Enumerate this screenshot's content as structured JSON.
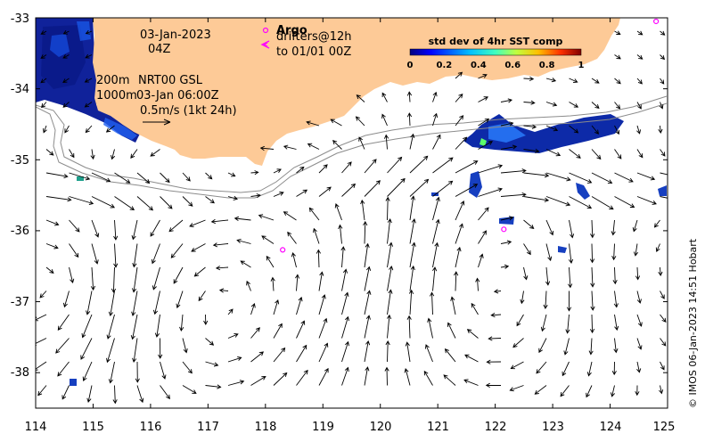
{
  "map": {
    "lon_ticks": [
      "114",
      "115",
      "116",
      "117",
      "118",
      "119",
      "120",
      "121",
      "122",
      "123",
      "124",
      "125"
    ],
    "lat_ticks": [
      "-33",
      "-34",
      "-35",
      "-36",
      "-37",
      "-38"
    ],
    "lon_range": [
      114,
      125
    ],
    "lat_range": [
      -38.5,
      -33
    ]
  },
  "annotations": {
    "date": "03-Jan-2023",
    "time": "04Z",
    "contour_200": "200m",
    "contour_1000": "1000m",
    "product": "NRT00 GSL",
    "valid_time": "03-Jan 06:00Z",
    "scale_arrow": "0.5m/s (1kt 24h)"
  },
  "drifters": {
    "argo_label": "Argo",
    "drifters_label": "drifters@12h",
    "to_label": "to 01/01 00Z",
    "argo_floats": [
      {
        "lon": 118.3,
        "lat": -36.27
      },
      {
        "lon": 122.15,
        "lat": -35.98
      },
      {
        "lon": 124.8,
        "lat": -33.05
      }
    ]
  },
  "legend": {
    "title": "std dev of 4hr SST comp",
    "ticks": [
      "0",
      "0.2",
      "0.4",
      "0.6",
      "0.8",
      "1"
    ],
    "colors": [
      "#00007f",
      "#0000ff",
      "#007fff",
      "#00ffff",
      "#7fff7f",
      "#ffff00",
      "#ff7f00",
      "#ff0000",
      "#7f0000"
    ]
  },
  "credit": "© IMOS 06-Jan-2023 14:51 Hobart",
  "colors": {
    "land": "#fdca97",
    "arrow": "#000000",
    "argo": "#ff00ff",
    "isobath": "#8c8c8c"
  }
}
